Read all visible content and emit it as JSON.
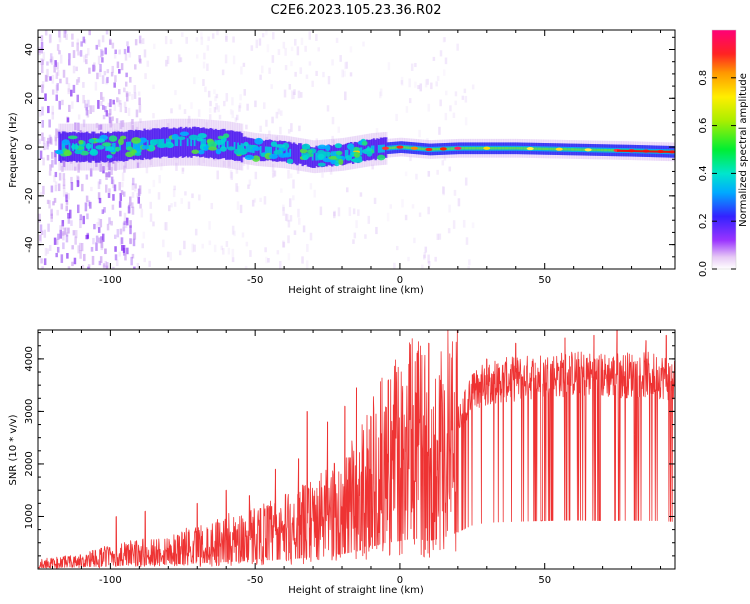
{
  "title": "C2E6.2023.105.23.36.R02",
  "chart_data": [
    {
      "type": "heatmap",
      "xlabel": "Height of straight line (km)",
      "ylabel": "Frequency (Hz)",
      "xlim": [
        -125,
        95
      ],
      "ylim": [
        -50,
        48
      ],
      "x_ticks": [
        -100,
        -50,
        0,
        50
      ],
      "y_ticks": [
        -40,
        -20,
        0,
        20,
        40
      ],
      "colorbar": {
        "label": "Normalized spectral amplitude",
        "range": [
          0.0,
          1.0
        ],
        "ticks": [
          0.0,
          0.2,
          0.4,
          0.6,
          0.8
        ],
        "colormap": "rainbow (purple to red)"
      },
      "band_center_hz": [
        [
          -120,
          0
        ],
        [
          -100,
          0
        ],
        [
          -90,
          1
        ],
        [
          -80,
          2
        ],
        [
          -70,
          2
        ],
        [
          -60,
          1
        ],
        [
          -50,
          -1
        ],
        [
          -40,
          -2
        ],
        [
          -30,
          -4
        ],
        [
          -20,
          -3
        ],
        [
          -10,
          -1
        ],
        [
          0,
          0
        ],
        [
          10,
          -1
        ],
        [
          20,
          -0.5
        ],
        [
          40,
          -0.5
        ],
        [
          60,
          -1
        ],
        [
          80,
          -1.5
        ],
        [
          95,
          -2
        ]
      ]
    },
    {
      "type": "line",
      "xlabel": "Height of straight line (km)",
      "ylabel": "SNR (10 * v/v)",
      "xlim": [
        -125,
        95
      ],
      "ylim": [
        0,
        4550
      ],
      "x_ticks": [
        -100,
        -50,
        0,
        50
      ],
      "y_ticks": [
        1000,
        2000,
        3000,
        4000
      ],
      "series": [
        {
          "color": "#ee3333",
          "trend": [
            [
              -125,
              100
            ],
            [
              -110,
              150
            ],
            [
              -100,
              250
            ],
            [
              -90,
              300
            ],
            [
              -80,
              350
            ],
            [
              -70,
              450
            ],
            [
              -60,
              550
            ],
            [
              -50,
              650
            ],
            [
              -40,
              750
            ],
            [
              -30,
              900
            ],
            [
              -20,
              1150
            ],
            [
              -15,
              1350
            ],
            [
              -10,
              1700
            ],
            [
              -5,
              2000
            ],
            [
              0,
              2150
            ],
            [
              5,
              2350
            ],
            [
              10,
              2150
            ],
            [
              15,
              2400
            ],
            [
              20,
              2800
            ],
            [
              25,
              3350
            ],
            [
              30,
              3550
            ],
            [
              40,
              3620
            ],
            [
              50,
              3680
            ],
            [
              60,
              3720
            ],
            [
              70,
              3680
            ],
            [
              80,
              3700
            ],
            [
              90,
              3680
            ],
            [
              95,
              3600
            ]
          ],
          "spikes": [
            [
              -98,
              1000
            ],
            [
              -88,
              1100
            ],
            [
              -70,
              1250
            ],
            [
              -60,
              1500
            ],
            [
              -52,
              1400
            ],
            [
              -43,
              1900
            ],
            [
              -35,
              2100
            ],
            [
              -32,
              3000
            ],
            [
              -25,
              2800
            ],
            [
              -19,
              3100
            ],
            [
              -15,
              3450
            ],
            [
              -10,
              2900
            ],
            [
              -4,
              3600
            ],
            [
              2,
              2700
            ],
            [
              10,
              4300
            ],
            [
              12,
              900
            ],
            [
              18,
              3400
            ],
            [
              25,
              3700
            ],
            [
              30,
              4000
            ],
            [
              40,
              4300
            ],
            [
              57,
              4400
            ],
            [
              67,
              4450
            ],
            [
              75,
              4550
            ],
            [
              85,
              4350
            ],
            [
              92,
              4450
            ]
          ]
        }
      ]
    }
  ]
}
